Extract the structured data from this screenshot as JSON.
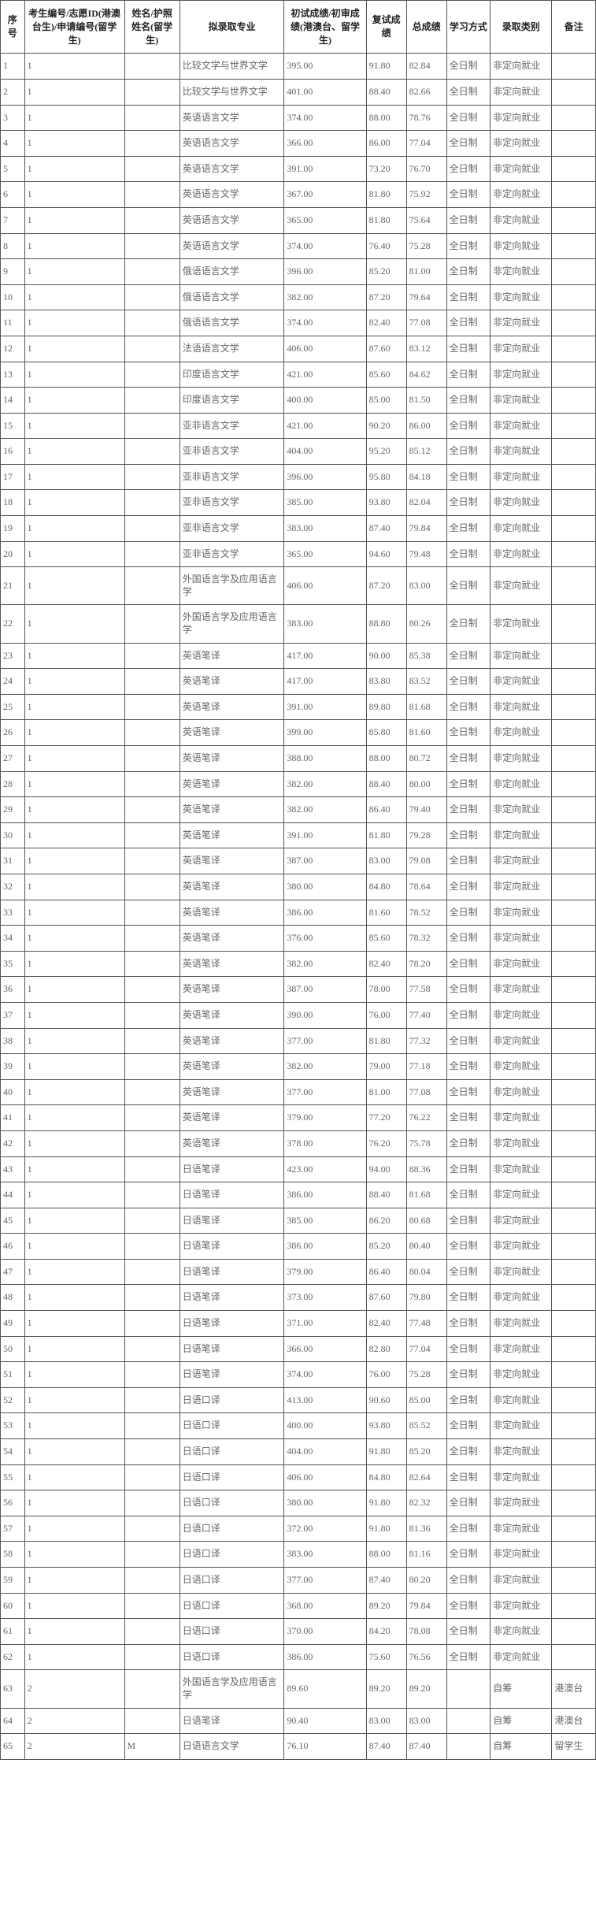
{
  "columns": [
    "序号",
    "考生编号/志愿ID(港澳台生)/申请编号(留学生)",
    "姓名/护照姓名(留学生)",
    "拟录取专业",
    "初试成绩/初审成绩(港澳台、留学生)",
    "复试成绩",
    "总成绩",
    "学习方式",
    "录取类别",
    "备注"
  ],
  "column_classes": [
    "c-seq",
    "c-id",
    "c-name",
    "c-major",
    "c-score1",
    "c-score2",
    "c-total",
    "c-mode",
    "c-type",
    "c-note"
  ],
  "rows": [
    [
      "1",
      "1",
      "",
      "比较文学与世界文学",
      "395.00",
      "91.80",
      "82.84",
      "全日制",
      "非定向就业",
      ""
    ],
    [
      "2",
      "1",
      "",
      "比较文学与世界文学",
      "401.00",
      "88.40",
      "82.66",
      "全日制",
      "非定向就业",
      ""
    ],
    [
      "3",
      "1",
      "",
      "英语语言文学",
      "374.00",
      "88.00",
      "78.76",
      "全日制",
      "非定向就业",
      ""
    ],
    [
      "4",
      "1",
      "",
      "英语语言文学",
      "366.00",
      "86.00",
      "77.04",
      "全日制",
      "非定向就业",
      ""
    ],
    [
      "5",
      "1",
      "",
      "英语语言文学",
      "391.00",
      "73.20",
      "76.70",
      "全日制",
      "非定向就业",
      ""
    ],
    [
      "6",
      "1",
      "",
      "英语语言文学",
      "367.00",
      "81.80",
      "75.92",
      "全日制",
      "非定向就业",
      ""
    ],
    [
      "7",
      "1",
      "",
      "英语语言文学",
      "365.00",
      "81.80",
      "75.64",
      "全日制",
      "非定向就业",
      ""
    ],
    [
      "8",
      "1",
      "",
      "英语语言文学",
      "374.00",
      "76.40",
      "75.28",
      "全日制",
      "非定向就业",
      ""
    ],
    [
      "9",
      "1",
      "",
      "俄语语言文学",
      "396.00",
      "85.20",
      "81.00",
      "全日制",
      "非定向就业",
      ""
    ],
    [
      "10",
      "1",
      "",
      "俄语语言文学",
      "382.00",
      "87.20",
      "79.64",
      "全日制",
      "非定向就业",
      ""
    ],
    [
      "11",
      "1",
      "",
      "俄语语言文学",
      "374.00",
      "82.40",
      "77.08",
      "全日制",
      "非定向就业",
      ""
    ],
    [
      "12",
      "1",
      "",
      "法语语言文学",
      "406.00",
      "87.60",
      "83.12",
      "全日制",
      "非定向就业",
      ""
    ],
    [
      "13",
      "1",
      "",
      "印度语言文学",
      "421.00",
      "85.60",
      "84.62",
      "全日制",
      "非定向就业",
      ""
    ],
    [
      "14",
      "1",
      "",
      "印度语言文学",
      "400.00",
      "85.00",
      "81.50",
      "全日制",
      "非定向就业",
      ""
    ],
    [
      "15",
      "1",
      "",
      "亚非语言文学",
      "421.00",
      "90.20",
      "86.00",
      "全日制",
      "非定向就业",
      ""
    ],
    [
      "16",
      "1",
      "",
      "亚非语言文学",
      "404.00",
      "95.20",
      "85.12",
      "全日制",
      "非定向就业",
      ""
    ],
    [
      "17",
      "1",
      "",
      "亚非语言文学",
      "396.00",
      "95.80",
      "84.18",
      "全日制",
      "非定向就业",
      ""
    ],
    [
      "18",
      "1",
      "",
      "亚非语言文学",
      "385.00",
      "93.80",
      "82.04",
      "全日制",
      "非定向就业",
      ""
    ],
    [
      "19",
      "1",
      "",
      "亚非语言文学",
      "383.00",
      "87.40",
      "79.84",
      "全日制",
      "非定向就业",
      ""
    ],
    [
      "20",
      "1",
      "",
      "亚非语言文学",
      "365.00",
      "94.60",
      "79.48",
      "全日制",
      "非定向就业",
      ""
    ],
    [
      "21",
      "1",
      "",
      "外国语言学及应用语言学",
      "406.00",
      "87.20",
      "83.00",
      "全日制",
      "非定向就业",
      ""
    ],
    [
      "22",
      "1",
      "",
      "外国语言学及应用语言学",
      "383.00",
      "88.80",
      "80.26",
      "全日制",
      "非定向就业",
      ""
    ],
    [
      "23",
      "1",
      "",
      "英语笔译",
      "417.00",
      "90.00",
      "85.38",
      "全日制",
      "非定向就业",
      ""
    ],
    [
      "24",
      "1",
      "",
      "英语笔译",
      "417.00",
      "83.80",
      "83.52",
      "全日制",
      "非定向就业",
      ""
    ],
    [
      "25",
      "1",
      "",
      "英语笔译",
      "391.00",
      "89.80",
      "81.68",
      "全日制",
      "非定向就业",
      ""
    ],
    [
      "26",
      "1",
      "",
      "英语笔译",
      "399.00",
      "85.80",
      "81.60",
      "全日制",
      "非定向就业",
      ""
    ],
    [
      "27",
      "1",
      "",
      "英语笔译",
      "388.00",
      "88.00",
      "80.72",
      "全日制",
      "非定向就业",
      ""
    ],
    [
      "28",
      "1",
      "",
      "英语笔译",
      "382.00",
      "88.40",
      "80.00",
      "全日制",
      "非定向就业",
      ""
    ],
    [
      "29",
      "1",
      "",
      "英语笔译",
      "382.00",
      "86.40",
      "79.40",
      "全日制",
      "非定向就业",
      ""
    ],
    [
      "30",
      "1",
      "",
      "英语笔译",
      "391.00",
      "81.80",
      "79.28",
      "全日制",
      "非定向就业",
      ""
    ],
    [
      "31",
      "1",
      "",
      "英语笔译",
      "387.00",
      "83.00",
      "79.08",
      "全日制",
      "非定向就业",
      ""
    ],
    [
      "32",
      "1",
      "",
      "英语笔译",
      "380.00",
      "84.80",
      "78.64",
      "全日制",
      "非定向就业",
      ""
    ],
    [
      "33",
      "1",
      "",
      "英语笔译",
      "386.00",
      "81.60",
      "78.52",
      "全日制",
      "非定向就业",
      ""
    ],
    [
      "34",
      "1",
      "",
      "英语笔译",
      "376.00",
      "85.60",
      "78.32",
      "全日制",
      "非定向就业",
      ""
    ],
    [
      "35",
      "1",
      "",
      "英语笔译",
      "382.00",
      "82.40",
      "78.20",
      "全日制",
      "非定向就业",
      ""
    ],
    [
      "36",
      "1",
      "",
      "英语笔译",
      "387.00",
      "78.00",
      "77.58",
      "全日制",
      "非定向就业",
      ""
    ],
    [
      "37",
      "1",
      "",
      "英语笔译",
      "390.00",
      "76.00",
      "77.40",
      "全日制",
      "非定向就业",
      ""
    ],
    [
      "38",
      "1",
      "",
      "英语笔译",
      "377.00",
      "81.80",
      "77.32",
      "全日制",
      "非定向就业",
      ""
    ],
    [
      "39",
      "1",
      "",
      "英语笔译",
      "382.00",
      "79.00",
      "77.18",
      "全日制",
      "非定向就业",
      ""
    ],
    [
      "40",
      "1",
      "",
      "英语笔译",
      "377.00",
      "81.00",
      "77.08",
      "全日制",
      "非定向就业",
      ""
    ],
    [
      "41",
      "1",
      "",
      "英语笔译",
      "379.00",
      "77.20",
      "76.22",
      "全日制",
      "非定向就业",
      ""
    ],
    [
      "42",
      "1",
      "",
      "英语笔译",
      "378.00",
      "76.20",
      "75.78",
      "全日制",
      "非定向就业",
      ""
    ],
    [
      "43",
      "1",
      "",
      "日语笔译",
      "423.00",
      "94.00",
      "88.36",
      "全日制",
      "非定向就业",
      ""
    ],
    [
      "44",
      "1",
      "",
      "日语笔译",
      "386.00",
      "88.40",
      "81.68",
      "全日制",
      "非定向就业",
      ""
    ],
    [
      "45",
      "1",
      "",
      "日语笔译",
      "385.00",
      "86.20",
      "80.68",
      "全日制",
      "非定向就业",
      ""
    ],
    [
      "46",
      "1",
      "",
      "日语笔译",
      "386.00",
      "85.20",
      "80.40",
      "全日制",
      "非定向就业",
      ""
    ],
    [
      "47",
      "1",
      "",
      "日语笔译",
      "379.00",
      "86.40",
      "80.04",
      "全日制",
      "非定向就业",
      ""
    ],
    [
      "48",
      "1",
      "",
      "日语笔译",
      "373.00",
      "87.60",
      "79.80",
      "全日制",
      "非定向就业",
      ""
    ],
    [
      "49",
      "1",
      "",
      "日语笔译",
      "371.00",
      "82.40",
      "77.48",
      "全日制",
      "非定向就业",
      ""
    ],
    [
      "50",
      "1",
      "",
      "日语笔译",
      "366.00",
      "82.80",
      "77.04",
      "全日制",
      "非定向就业",
      ""
    ],
    [
      "51",
      "1",
      "",
      "日语笔译",
      "374.00",
      "76.00",
      "75.28",
      "全日制",
      "非定向就业",
      ""
    ],
    [
      "52",
      "1",
      "",
      "日语口译",
      "413.00",
      "90.60",
      "85.00",
      "全日制",
      "非定向就业",
      ""
    ],
    [
      "53",
      "1",
      "",
      "日语口译",
      "400.00",
      "93.80",
      "85.52",
      "全日制",
      "非定向就业",
      ""
    ],
    [
      "54",
      "1",
      "",
      "日语口译",
      "404.00",
      "91.80",
      "85.20",
      "全日制",
      "非定向就业",
      ""
    ],
    [
      "55",
      "1",
      "",
      "日语口译",
      "406.00",
      "84.80",
      "82.64",
      "全日制",
      "非定向就业",
      ""
    ],
    [
      "56",
      "1",
      "",
      "日语口译",
      "380.00",
      "91.80",
      "82.32",
      "全日制",
      "非定向就业",
      ""
    ],
    [
      "57",
      "1",
      "",
      "日语口译",
      "372.00",
      "91.80",
      "81.36",
      "全日制",
      "非定向就业",
      ""
    ],
    [
      "58",
      "1",
      "",
      "日语口译",
      "383.00",
      "88.00",
      "81.16",
      "全日制",
      "非定向就业",
      ""
    ],
    [
      "59",
      "1",
      "",
      "日语口译",
      "377.00",
      "87.40",
      "80.20",
      "全日制",
      "非定向就业",
      ""
    ],
    [
      "60",
      "1",
      "",
      "日语口译",
      "368.00",
      "89.20",
      "79.84",
      "全日制",
      "非定向就业",
      ""
    ],
    [
      "61",
      "1",
      "",
      "日语口译",
      "370.00",
      "84.20",
      "78.08",
      "全日制",
      "非定向就业",
      ""
    ],
    [
      "62",
      "1",
      "",
      "日语口译",
      "386.00",
      "75.60",
      "76.56",
      "全日制",
      "非定向就业",
      ""
    ],
    [
      "63",
      "2",
      "",
      "外国语言学及应用语言学",
      "89.60",
      "89.20",
      "89.20",
      "",
      "自筹",
      "港澳台"
    ],
    [
      "64",
      "2",
      "",
      "日语笔译",
      "90.40",
      "83.00",
      "83.00",
      "",
      "自筹",
      "港澳台"
    ],
    [
      "65",
      "2",
      "M",
      "日语语言文学",
      "76.10",
      "87.40",
      "87.40",
      "",
      "自筹",
      "留学生"
    ]
  ]
}
